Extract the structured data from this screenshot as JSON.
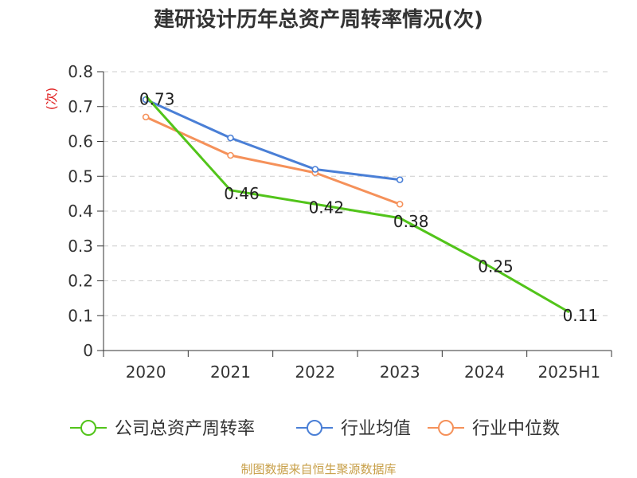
{
  "chart_data": {
    "type": "line",
    "title": "建研设计历年总资产周转率情况(次)",
    "ylabel": "(次)",
    "categories": [
      "2020",
      "2021",
      "2022",
      "2023",
      "2024",
      "2025H1"
    ],
    "ylim": [
      0,
      0.8
    ],
    "yticks": [
      "0",
      "0.1",
      "0.2",
      "0.3",
      "0.4",
      "0.5",
      "0.6",
      "0.7",
      "0.8"
    ],
    "grid": true,
    "legend_position": "bottom",
    "series": [
      {
        "name": "公司总资产周转率",
        "color": "#52c41a",
        "values": [
          0.73,
          0.46,
          0.42,
          0.38,
          0.25,
          0.11
        ],
        "labels": [
          "0.73",
          "0.46",
          "0.42",
          "0.38",
          "0.25",
          "0.11"
        ]
      },
      {
        "name": "行业均值",
        "color": "#4a7fd6",
        "values": [
          0.72,
          0.61,
          0.52,
          0.49,
          null,
          null
        ]
      },
      {
        "name": "行业中位数",
        "color": "#f5915a",
        "values": [
          0.67,
          0.56,
          0.51,
          0.42,
          null,
          null
        ]
      }
    ]
  },
  "footer": {
    "source": "制图数据来自恒生聚源数据库"
  }
}
